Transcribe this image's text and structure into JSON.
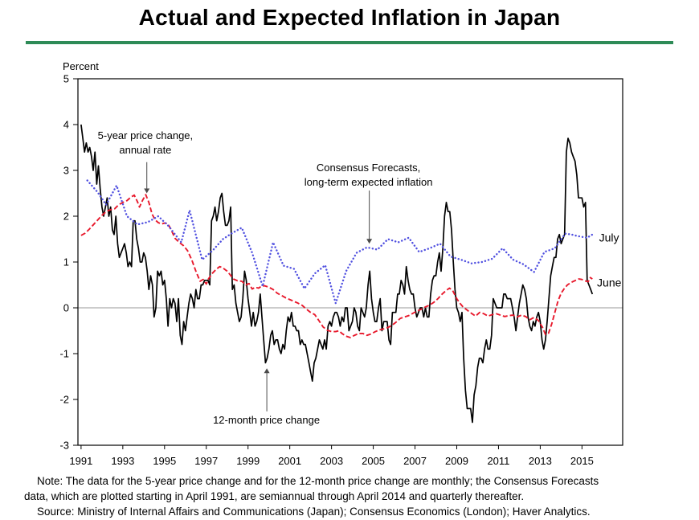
{
  "title": "Actual and Expected Inflation in Japan",
  "accent_color": "#2e8b57",
  "footnotes": {
    "note_line1": "Note:  The data for the 5-year price change and for the 12-month price change are monthly; the Consensus Forecasts",
    "note_line2": "data, which are plotted starting in April 1991, are semiannual through April 2014 and quarterly thereafter.",
    "source": "Source:  Ministry of Internal Affairs and Communications (Japan); Consensus Economics (London); Haver Analytics."
  },
  "chart_data": {
    "type": "line",
    "title": "Actual and Expected Inflation in Japan",
    "ylabel": "Percent",
    "y_range": [
      -3,
      5
    ],
    "y_ticks": [
      -3,
      -2,
      -1,
      0,
      1,
      2,
      3,
      4,
      5
    ],
    "x_range": [
      1990.85,
      2016.95
    ],
    "x_ticks": [
      1991,
      1993,
      1995,
      1997,
      1999,
      2001,
      2003,
      2005,
      2007,
      2009,
      2011,
      2013,
      2015
    ],
    "grid": "zero-line-only",
    "legend_position": "annotations-on-chart",
    "series": [
      {
        "id": "twelve-month-price-change",
        "name": "12-month price change",
        "color": "#000000",
        "style": "solid",
        "width": 1.7,
        "start_year": 1991.0,
        "interval_months": 1,
        "values": [
          4.0,
          3.7,
          3.4,
          3.6,
          3.4,
          3.5,
          3.3,
          3.0,
          3.4,
          2.7,
          3.1,
          2.6,
          2.2,
          2.0,
          2.2,
          2.4,
          2.0,
          2.2,
          1.7,
          1.6,
          2.0,
          1.4,
          1.1,
          1.2,
          1.3,
          1.4,
          1.2,
          0.9,
          1.0,
          0.9,
          1.9,
          1.9,
          1.5,
          1.3,
          1.0,
          1.0,
          1.2,
          1.1,
          0.8,
          0.4,
          0.7,
          0.5,
          -0.2,
          0.0,
          0.8,
          0.7,
          0.8,
          0.5,
          0.6,
          0.2,
          -0.4,
          0.2,
          0.0,
          0.2,
          0.1,
          -0.3,
          0.2,
          -0.6,
          -0.8,
          -0.3,
          -0.5,
          -0.2,
          0.1,
          0.3,
          0.2,
          0.0,
          0.4,
          0.2,
          0.2,
          0.5,
          0.5,
          0.6,
          0.6,
          0.6,
          0.5,
          1.9,
          2.0,
          2.2,
          1.9,
          2.1,
          2.4,
          2.5,
          2.1,
          1.8,
          1.8,
          1.9,
          2.2,
          0.4,
          0.5,
          0.1,
          -0.1,
          -0.3,
          -0.2,
          0.2,
          0.8,
          0.6,
          0.2,
          -0.1,
          -0.4,
          -0.1,
          -0.4,
          -0.3,
          -0.1,
          0.3,
          -0.2,
          -0.7,
          -1.2,
          -1.1,
          -0.9,
          -0.6,
          -0.5,
          -0.8,
          -0.7,
          -0.7,
          -0.9,
          -1.0,
          -0.8,
          -0.9,
          -0.5,
          -0.2,
          -0.3,
          -0.1,
          -0.4,
          -0.4,
          -0.5,
          -0.5,
          -0.8,
          -0.7,
          -0.8,
          -0.8,
          -1.0,
          -1.2,
          -1.4,
          -1.6,
          -1.2,
          -1.1,
          -0.9,
          -0.7,
          -0.8,
          -0.9,
          -0.7,
          -0.9,
          -0.4,
          -0.3,
          -0.4,
          -0.2,
          -0.1,
          -0.1,
          -0.2,
          -0.4,
          -0.2,
          -0.3,
          0.0,
          0.0,
          -0.5,
          -0.4,
          -0.3,
          0.0,
          -0.1,
          -0.4,
          -0.5,
          0.0,
          -0.1,
          -0.2,
          0.0,
          0.5,
          0.8,
          0.2,
          -0.1,
          -0.3,
          -0.3,
          0.0,
          0.2,
          -0.5,
          -0.3,
          -0.3,
          -0.3,
          -0.7,
          -0.8,
          -0.1,
          -0.1,
          -0.1,
          0.3,
          0.3,
          0.6,
          0.5,
          0.3,
          0.9,
          0.6,
          0.4,
          0.3,
          0.3,
          0.0,
          -0.2,
          -0.1,
          0.0,
          0.0,
          -0.2,
          0.0,
          -0.2,
          -0.2,
          0.3,
          0.6,
          0.7,
          0.7,
          1.0,
          1.2,
          0.8,
          1.3,
          2.0,
          2.3,
          2.1,
          2.1,
          1.7,
          1.0,
          0.4,
          0.0,
          -0.1,
          -0.3,
          -0.1,
          -1.1,
          -1.8,
          -2.2,
          -2.2,
          -2.2,
          -2.5,
          -1.9,
          -1.7,
          -1.3,
          -1.1,
          -1.1,
          -1.2,
          -0.9,
          -0.7,
          -0.9,
          -0.9,
          -0.6,
          0.2,
          0.1,
          0.0,
          0.0,
          0.0,
          0.0,
          0.3,
          0.3,
          0.2,
          0.2,
          0.2,
          0.0,
          -0.2,
          -0.5,
          -0.2,
          0.1,
          0.3,
          0.5,
          0.4,
          0.2,
          -0.2,
          -0.4,
          -0.5,
          -0.3,
          -0.4,
          -0.2,
          -0.1,
          -0.3,
          -0.7,
          -0.9,
          -0.7,
          -0.3,
          0.2,
          0.7,
          0.9,
          1.1,
          1.1,
          1.5,
          1.6,
          1.4,
          1.5,
          1.6,
          3.4,
          3.7,
          3.6,
          3.4,
          3.3,
          3.2,
          2.9,
          2.4,
          2.4,
          2.4,
          2.2,
          2.3,
          0.6,
          0.5,
          0.4,
          0.3
        ]
      },
      {
        "id": "five-year-price-change",
        "name": "5-year price change, annual rate",
        "color": "#e8192c",
        "style": "dashed",
        "width": 1.9,
        "points": [
          [
            1991.0,
            1.58
          ],
          [
            1991.2,
            1.63
          ],
          [
            1991.4,
            1.72
          ],
          [
            1991.6,
            1.82
          ],
          [
            1991.8,
            1.92
          ],
          [
            1992.0,
            2.02
          ],
          [
            1992.2,
            2.1
          ],
          [
            1992.4,
            2.14
          ],
          [
            1992.6,
            2.16
          ],
          [
            1992.8,
            2.25
          ],
          [
            1993.0,
            2.3
          ],
          [
            1993.2,
            2.34
          ],
          [
            1993.4,
            2.42
          ],
          [
            1993.55,
            2.46
          ],
          [
            1993.7,
            2.32
          ],
          [
            1993.8,
            2.2
          ],
          [
            1993.95,
            2.35
          ],
          [
            1994.1,
            2.47
          ],
          [
            1994.25,
            2.3
          ],
          [
            1994.4,
            2.05
          ],
          [
            1994.55,
            1.92
          ],
          [
            1994.7,
            1.86
          ],
          [
            1994.85,
            1.83
          ],
          [
            1995.0,
            1.85
          ],
          [
            1995.15,
            1.84
          ],
          [
            1995.3,
            1.72
          ],
          [
            1995.5,
            1.52
          ],
          [
            1995.7,
            1.43
          ],
          [
            1995.9,
            1.36
          ],
          [
            1996.1,
            1.25
          ],
          [
            1996.3,
            1.05
          ],
          [
            1996.5,
            0.8
          ],
          [
            1996.7,
            0.58
          ],
          [
            1996.85,
            0.62
          ],
          [
            1997.0,
            0.52
          ],
          [
            1997.1,
            0.63
          ],
          [
            1997.3,
            0.76
          ],
          [
            1997.5,
            0.85
          ],
          [
            1997.65,
            0.9
          ],
          [
            1997.8,
            0.87
          ],
          [
            1998.0,
            0.8
          ],
          [
            1998.15,
            0.72
          ],
          [
            1998.3,
            0.63
          ],
          [
            1998.5,
            0.59
          ],
          [
            1998.7,
            0.58
          ],
          [
            1998.9,
            0.5
          ],
          [
            1999.05,
            0.53
          ],
          [
            1999.2,
            0.41
          ],
          [
            1999.35,
            0.45
          ],
          [
            1999.5,
            0.43
          ],
          [
            1999.65,
            0.47
          ],
          [
            1999.8,
            0.48
          ],
          [
            2000.0,
            0.45
          ],
          [
            2000.2,
            0.4
          ],
          [
            2000.4,
            0.32
          ],
          [
            2000.6,
            0.27
          ],
          [
            2000.8,
            0.22
          ],
          [
            2001.0,
            0.18
          ],
          [
            2001.2,
            0.14
          ],
          [
            2001.4,
            0.1
          ],
          [
            2001.6,
            0.05
          ],
          [
            2001.8,
            -0.03
          ],
          [
            2002.0,
            -0.1
          ],
          [
            2002.2,
            -0.15
          ],
          [
            2002.4,
            -0.28
          ],
          [
            2002.6,
            -0.42
          ],
          [
            2002.8,
            -0.49
          ],
          [
            2003.0,
            -0.52
          ],
          [
            2003.2,
            -0.52
          ],
          [
            2003.35,
            -0.5
          ],
          [
            2003.5,
            -0.56
          ],
          [
            2003.7,
            -0.62
          ],
          [
            2003.9,
            -0.65
          ],
          [
            2004.1,
            -0.6
          ],
          [
            2004.3,
            -0.56
          ],
          [
            2004.5,
            -0.56
          ],
          [
            2004.7,
            -0.6
          ],
          [
            2004.9,
            -0.57
          ],
          [
            2005.1,
            -0.52
          ],
          [
            2005.3,
            -0.48
          ],
          [
            2005.5,
            -0.46
          ],
          [
            2005.7,
            -0.43
          ],
          [
            2005.9,
            -0.38
          ],
          [
            2006.1,
            -0.31
          ],
          [
            2006.3,
            -0.23
          ],
          [
            2006.5,
            -0.2
          ],
          [
            2006.7,
            -0.17
          ],
          [
            2006.9,
            -0.12
          ],
          [
            2007.1,
            -0.07
          ],
          [
            2007.3,
            -0.03
          ],
          [
            2007.5,
            0.02
          ],
          [
            2007.7,
            0.06
          ],
          [
            2007.9,
            0.12
          ],
          [
            2008.1,
            0.2
          ],
          [
            2008.3,
            0.3
          ],
          [
            2008.5,
            0.38
          ],
          [
            2008.65,
            0.43
          ],
          [
            2008.8,
            0.38
          ],
          [
            2009.0,
            0.2
          ],
          [
            2009.15,
            0.1
          ],
          [
            2009.3,
            0.02
          ],
          [
            2009.5,
            -0.05
          ],
          [
            2009.7,
            -0.12
          ],
          [
            2009.9,
            -0.18
          ],
          [
            2010.1,
            -0.1
          ],
          [
            2010.3,
            -0.13
          ],
          [
            2010.5,
            -0.18
          ],
          [
            2010.7,
            -0.15
          ],
          [
            2010.9,
            -0.13
          ],
          [
            2011.1,
            -0.16
          ],
          [
            2011.3,
            -0.19
          ],
          [
            2011.5,
            -0.17
          ],
          [
            2011.7,
            -0.16
          ],
          [
            2011.9,
            -0.2
          ],
          [
            2012.1,
            -0.16
          ],
          [
            2012.3,
            -0.19
          ],
          [
            2012.5,
            -0.26
          ],
          [
            2012.7,
            -0.21
          ],
          [
            2012.9,
            -0.27
          ],
          [
            2013.1,
            -0.42
          ],
          [
            2013.25,
            -0.58
          ],
          [
            2013.4,
            -0.55
          ],
          [
            2013.55,
            -0.35
          ],
          [
            2013.7,
            -0.1
          ],
          [
            2013.85,
            0.15
          ],
          [
            2014.0,
            0.32
          ],
          [
            2014.15,
            0.42
          ],
          [
            2014.3,
            0.5
          ],
          [
            2014.5,
            0.56
          ],
          [
            2014.7,
            0.6
          ],
          [
            2014.85,
            0.63
          ],
          [
            2015.0,
            0.62
          ],
          [
            2015.15,
            0.59
          ],
          [
            2015.3,
            0.57
          ],
          [
            2015.4,
            0.66
          ],
          [
            2015.5,
            0.63
          ]
        ]
      },
      {
        "id": "consensus-forecasts",
        "name": "Consensus Forecasts, long-term expected inflation",
        "color": "#5050e0",
        "style": "dotted",
        "width": 2.4,
        "points": [
          [
            1991.3,
            2.78
          ],
          [
            1991.8,
            2.52
          ],
          [
            1992.2,
            2.25
          ],
          [
            1992.7,
            2.67
          ],
          [
            1993.2,
            2.0
          ],
          [
            1993.7,
            1.82
          ],
          [
            1994.2,
            1.87
          ],
          [
            1994.7,
            2.0
          ],
          [
            1995.2,
            1.78
          ],
          [
            1995.8,
            1.43
          ],
          [
            1996.2,
            2.13
          ],
          [
            1996.8,
            1.05
          ],
          [
            1997.3,
            1.25
          ],
          [
            1997.8,
            1.5
          ],
          [
            1998.2,
            1.62
          ],
          [
            1998.7,
            1.75
          ],
          [
            1999.2,
            1.2
          ],
          [
            1999.7,
            0.47
          ],
          [
            2000.2,
            1.43
          ],
          [
            2000.7,
            0.92
          ],
          [
            2001.2,
            0.85
          ],
          [
            2001.7,
            0.42
          ],
          [
            2002.2,
            0.75
          ],
          [
            2002.7,
            0.93
          ],
          [
            2003.2,
            0.1
          ],
          [
            2003.7,
            0.8
          ],
          [
            2004.2,
            1.2
          ],
          [
            2004.7,
            1.32
          ],
          [
            2005.2,
            1.27
          ],
          [
            2005.7,
            1.5
          ],
          [
            2006.2,
            1.43
          ],
          [
            2006.7,
            1.53
          ],
          [
            2007.2,
            1.22
          ],
          [
            2007.7,
            1.3
          ],
          [
            2008.2,
            1.4
          ],
          [
            2008.7,
            1.12
          ],
          [
            2009.2,
            1.05
          ],
          [
            2009.7,
            0.97
          ],
          [
            2010.2,
            1.0
          ],
          [
            2010.7,
            1.07
          ],
          [
            2011.2,
            1.3
          ],
          [
            2011.7,
            1.05
          ],
          [
            2012.2,
            0.95
          ],
          [
            2012.7,
            0.78
          ],
          [
            2013.2,
            1.22
          ],
          [
            2013.7,
            1.3
          ],
          [
            2014.2,
            1.62
          ],
          [
            2014.5,
            1.6
          ],
          [
            2014.75,
            1.57
          ],
          [
            2015.0,
            1.55
          ],
          [
            2015.25,
            1.53
          ],
          [
            2015.5,
            1.6
          ]
        ]
      }
    ],
    "callouts": [
      {
        "id": "five-year-callout",
        "lines": [
          "5-year price change,",
          "annual rate"
        ],
        "tx": 1994.08,
        "ty": 3.68,
        "ax": 1994.15,
        "ay_from": 3.18,
        "ay_to": 2.5,
        "direction": "down"
      },
      {
        "id": "consensus-callout",
        "lines": [
          "Consensus Forecasts,",
          "long-term expected inflation"
        ],
        "tx": 2004.77,
        "ty": 2.98,
        "ax": 2004.81,
        "ay_from": 2.56,
        "ay_to": 1.4,
        "direction": "down"
      },
      {
        "id": "twelve-month-callout",
        "lines": [
          "12-month price change"
        ],
        "tx": 1999.88,
        "ty": -2.53,
        "ax": 1999.9,
        "ay_from": -2.26,
        "ay_to": -1.32,
        "direction": "up"
      }
    ],
    "series_end_labels": [
      {
        "id": "july-label",
        "text": "July",
        "x": 2015.82,
        "y": 1.53
      },
      {
        "id": "june-label",
        "text": "June",
        "x": 2015.72,
        "y": 0.54
      }
    ]
  }
}
